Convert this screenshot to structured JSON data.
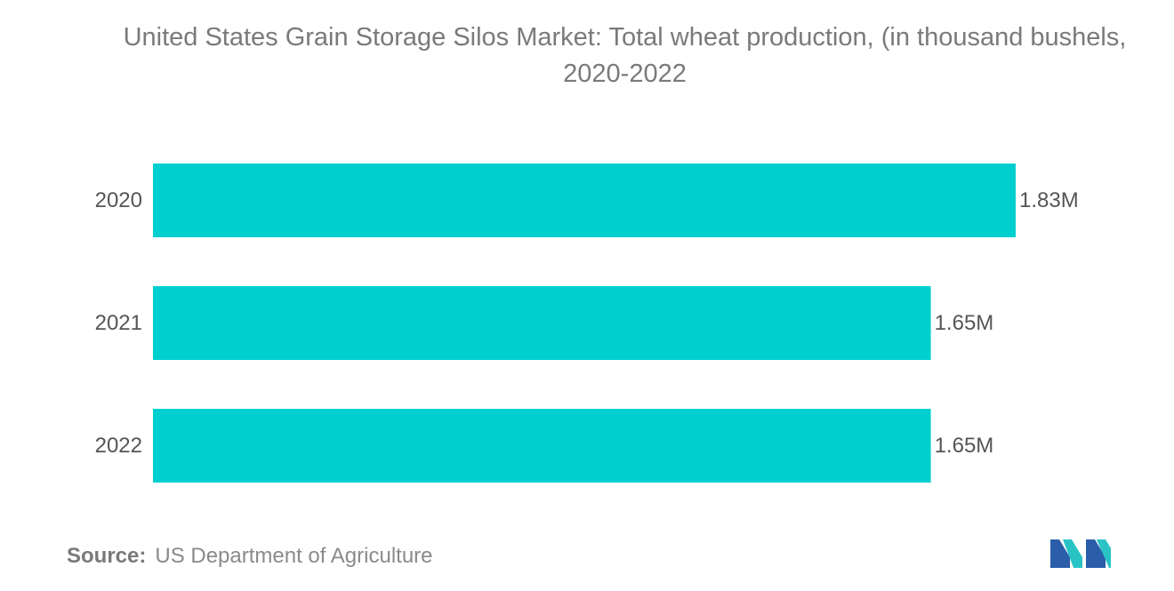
{
  "chart_data": {
    "type": "bar",
    "orientation": "horizontal",
    "title": "United States Grain Storage Silos Market: Total wheat production, (in thousand bushels, 2020-2022",
    "categories": [
      "2020",
      "2021",
      "2022"
    ],
    "values": [
      1830000,
      1650000,
      1650000
    ],
    "data_labels": [
      "1.83M",
      "1.65M",
      "1.65M"
    ],
    "bar_color": "#00cfd0",
    "xlim": [
      0,
      1830000
    ],
    "grid": false,
    "legend": "none"
  },
  "source": {
    "label": "Source:",
    "text": "US Department of Agriculture"
  },
  "brand": {
    "icon": "mordor-intelligence-logo-icon",
    "colors": [
      "#2a5ea8",
      "#29c3c6"
    ]
  }
}
